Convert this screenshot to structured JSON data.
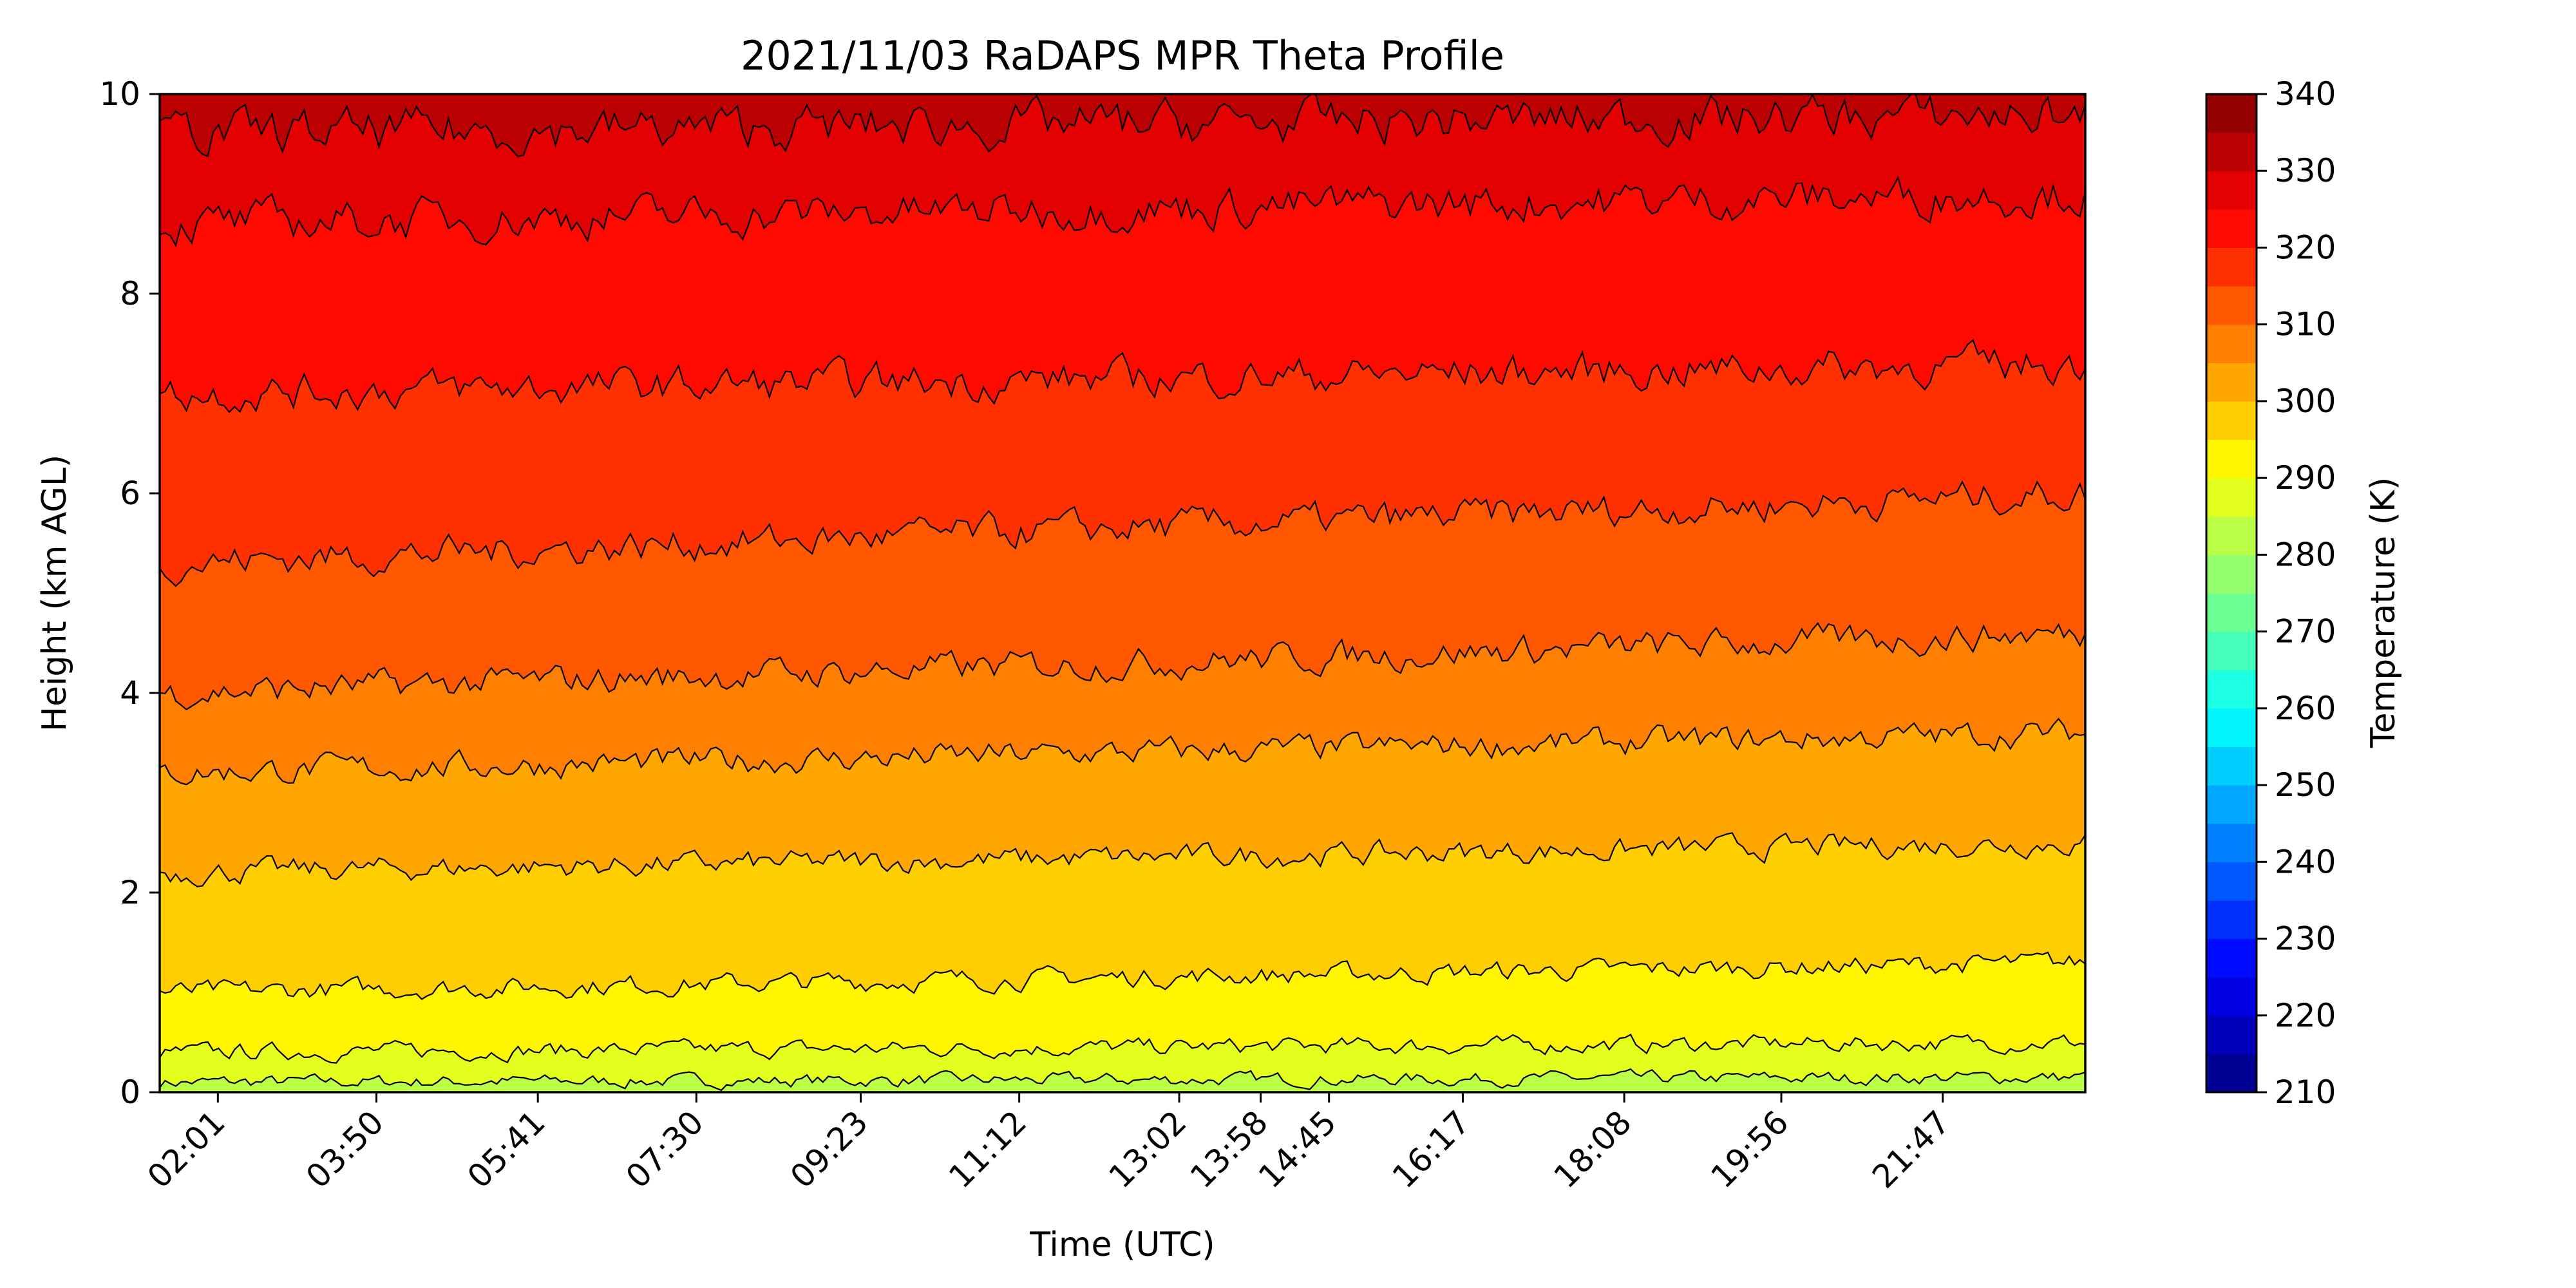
{
  "chart_data": {
    "type": "heatmap",
    "subtype": "filled-contour",
    "title": "2021/11/03 RaDAPS MPR Theta Profile",
    "xlabel": "Time (UTC)",
    "ylabel": "Height (km AGL)",
    "ylim": [
      0,
      10
    ],
    "yticks": [
      "0",
      "2",
      "4",
      "6",
      "8",
      "10"
    ],
    "xticks": [
      "02:01",
      "03:50",
      "05:41",
      "07:30",
      "09:23",
      "11:12",
      "13:02",
      "13:58",
      "14:45",
      "16:17",
      "18:08",
      "19:56",
      "21:47"
    ],
    "x_range": [
      "01:21",
      "23:25"
    ],
    "colorbar": {
      "label": "Temperature (K)",
      "min": 210,
      "max": 340,
      "step": 5,
      "ticks": [
        "210",
        "220",
        "230",
        "240",
        "250",
        "260",
        "270",
        "280",
        "290",
        "300",
        "310",
        "320",
        "330",
        "340"
      ],
      "colormap": "jet"
    },
    "contour_levels_K": [
      280,
      285,
      290,
      295,
      300,
      305,
      310,
      315,
      320,
      325,
      330
    ],
    "approx_isentrope_heights_km": [
      {
        "theta": 285,
        "height_start": 0.1,
        "height_end": 0.15
      },
      {
        "theta": 290,
        "height_start": 0.4,
        "height_end": 0.5
      },
      {
        "theta": 295,
        "height_start": 1.0,
        "height_end": 1.3
      },
      {
        "theta": 300,
        "height_start": 2.2,
        "height_end": 2.5
      },
      {
        "theta": 305,
        "height_start": 3.2,
        "height_end": 3.6
      },
      {
        "theta": 310,
        "height_start": 4.0,
        "height_end": 4.6
      },
      {
        "theta": 315,
        "height_start": 5.3,
        "height_end": 6.0
      },
      {
        "theta": 320,
        "height_start": 7.0,
        "height_end": 7.3
      },
      {
        "theta": 325,
        "height_start": 8.7,
        "height_end": 9.0
      },
      {
        "theta": 330,
        "height_start": 9.6,
        "height_end": 9.8
      }
    ],
    "grid": false,
    "legend": "none"
  }
}
